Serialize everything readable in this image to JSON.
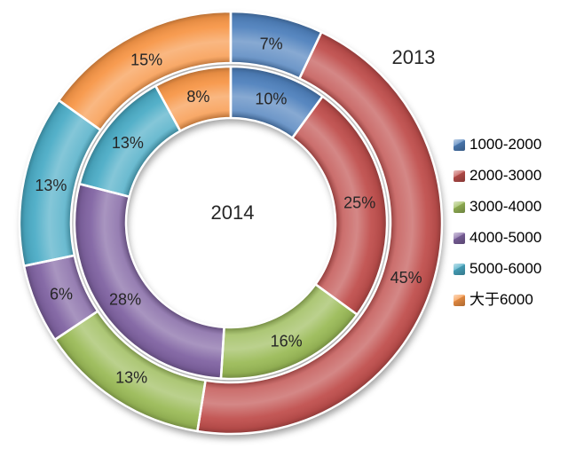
{
  "chart_data": {
    "type": "donut",
    "title": "",
    "categories": [
      "1000-2000",
      "2000-3000",
      "3000-4000",
      "4000-5000",
      "5000-6000",
      "大于6000"
    ],
    "colors": [
      "#4F81BD",
      "#C0504D",
      "#9BBB59",
      "#8064A2",
      "#4BACC6",
      "#F79646"
    ],
    "series": [
      {
        "name": "2014",
        "ring": "inner",
        "values": [
          10,
          25,
          16,
          28,
          13,
          8
        ],
        "labels": [
          "10%",
          "25%",
          "16%",
          "28%",
          "13%",
          "8%"
        ]
      },
      {
        "name": "2013",
        "ring": "outer",
        "values": [
          7,
          45,
          13,
          6,
          13,
          15
        ],
        "labels": [
          "7%",
          "45%",
          "13%",
          "6%",
          "13%",
          "15%"
        ]
      }
    ],
    "legend": {
      "position": "right",
      "items": [
        "1000-2000",
        "2000-3000",
        "3000-4000",
        "4000-5000",
        "5000-6000",
        "大于6000"
      ]
    },
    "annotations": [
      {
        "text": "2013",
        "target": "outer-ring"
      },
      {
        "text": "2014",
        "target": "inner-ring-center"
      }
    ],
    "label_color": "#262626",
    "segment_border_color": "#ffffff",
    "background": "#ffffff"
  }
}
